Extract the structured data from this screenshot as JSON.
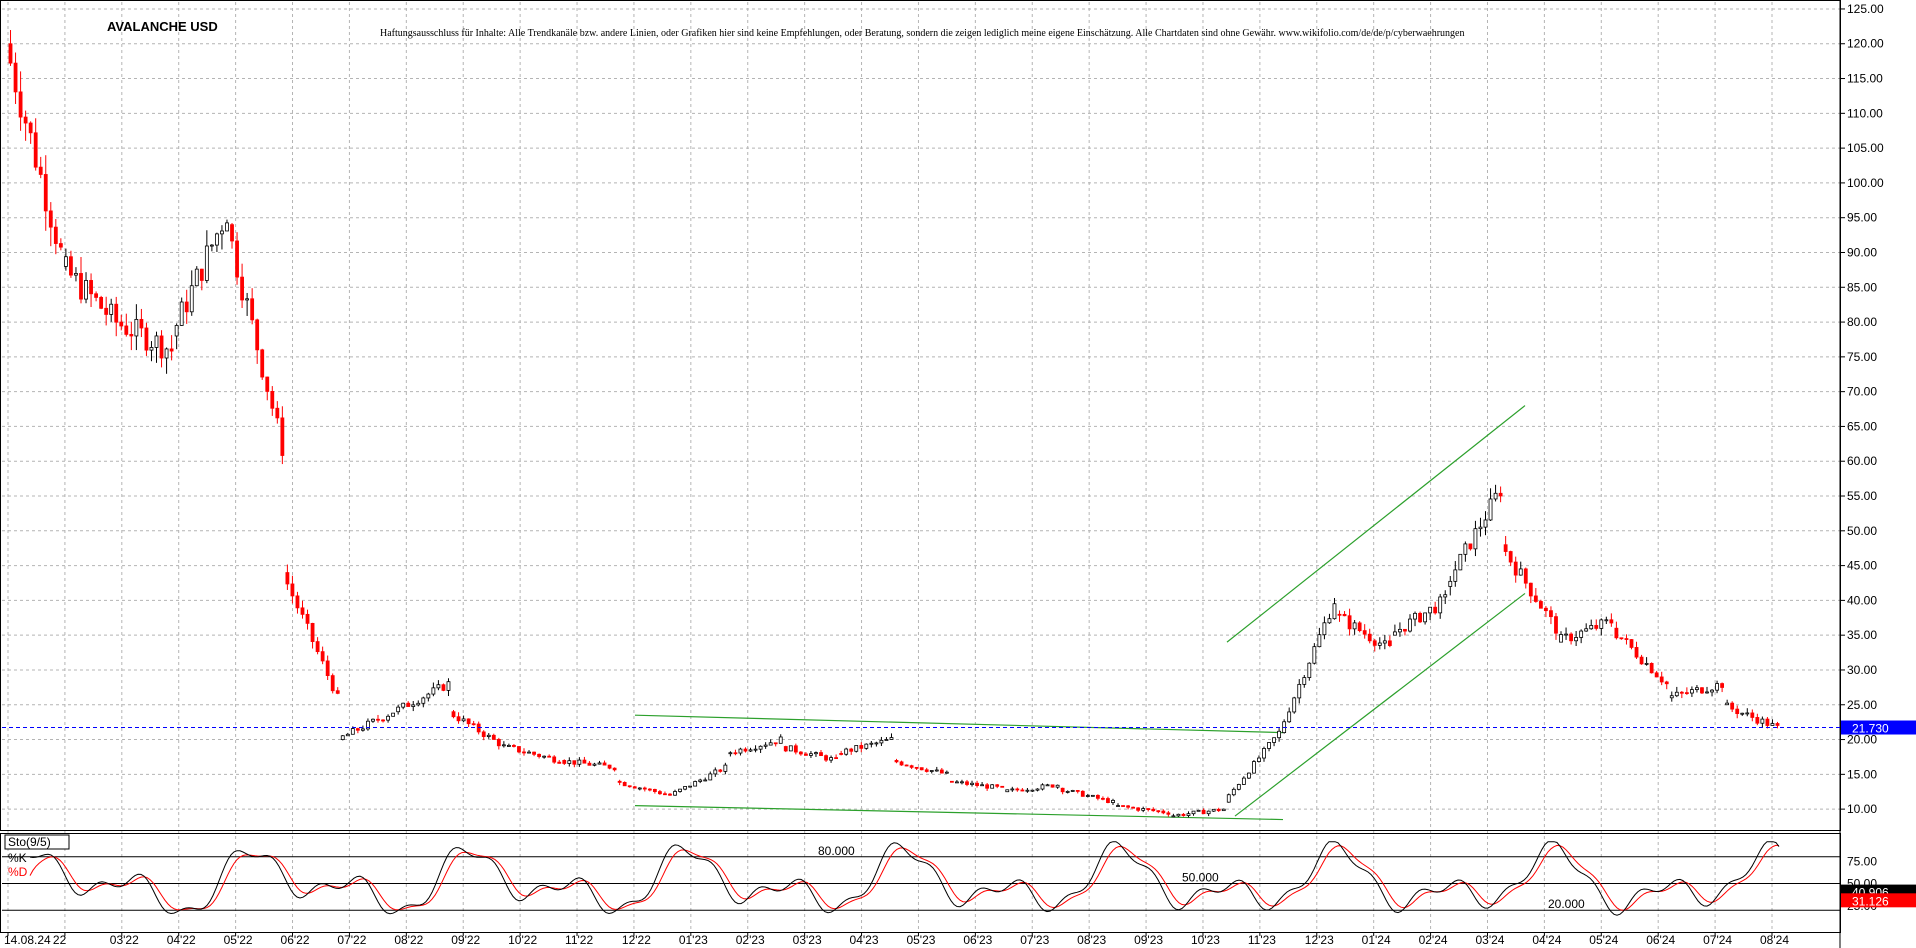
{
  "title": "AVALANCHE USD",
  "disclaimer": "Haftungsausschluss für Inhalte: Alle Trendkanäle bzw. andere Linien, oder Grafiken hier sind keine Empfehlungen, oder Beratung, sondern die zeigen lediglich meine eigene Einschätzung. Alle Chartdaten sind ohne Gewähr. www.wikifolio.com/de/de/p/cyberwaehrungen",
  "colors": {
    "up": "#000000",
    "down": "#ff0000",
    "trend": "#2ca02c",
    "current_line": "#0000ff",
    "grid": "#b4b4b4"
  },
  "chart_data": [
    {
      "type": "candlestick",
      "title": "AVALANCHE USD",
      "ylim": [
        7,
        126
      ],
      "yticks": [
        "125.00",
        "120.00",
        "115.00",
        "110.00",
        "105.00",
        "100.00",
        "95.00",
        "90.00",
        "85.00",
        "80.00",
        "75.00",
        "70.00",
        "65.00",
        "60.00",
        "55.00",
        "50.00",
        "45.00",
        "40.00",
        "35.00",
        "30.00",
        "25.00",
        "20.00",
        "15.00",
        "10.00"
      ],
      "current_price": "21.730",
      "grid": true,
      "xticks": [
        "14.08.24",
        "22",
        "03'22",
        "04'22",
        "05'22",
        "06'22",
        "07'22",
        "08'22",
        "09'22",
        "10'22",
        "11'22",
        "12'22",
        "01'23",
        "02'23",
        "03'23",
        "04'23",
        "05'23",
        "06'23",
        "07'23",
        "08'23",
        "09'23",
        "10'23",
        "11'23",
        "12'23",
        "01'24",
        "02'24",
        "03'24",
        "04'24",
        "05'24",
        "06'24",
        "07'24",
        "08'24"
      ],
      "series": [
        {
          "month": "01'22",
          "start": 120,
          "end": 90
        },
        {
          "month": "02'22",
          "start": 88,
          "end": 80
        },
        {
          "month": "03'22",
          "start": 80,
          "end": 76
        },
        {
          "month": "04'22",
          "start": 78,
          "end": 96
        },
        {
          "month": "05'22",
          "start": 94,
          "end": 62
        },
        {
          "month": "06'22",
          "start": 44,
          "end": 26
        },
        {
          "month": "07'22",
          "start": 20,
          "end": 24
        },
        {
          "month": "08'22",
          "start": 24,
          "end": 28
        },
        {
          "month": "09'22",
          "start": 24,
          "end": 19
        },
        {
          "month": "10'22",
          "start": 19,
          "end": 17
        },
        {
          "month": "11'22",
          "start": 17,
          "end": 16
        },
        {
          "month": "12'22",
          "start": 14,
          "end": 12
        },
        {
          "month": "01'23",
          "start": 12,
          "end": 16
        },
        {
          "month": "02'23",
          "start": 18,
          "end": 20
        },
        {
          "month": "03'23",
          "start": 19,
          "end": 17
        },
        {
          "month": "04'23",
          "start": 18,
          "end": 20
        },
        {
          "month": "05'23",
          "start": 17,
          "end": 15
        },
        {
          "month": "06'23",
          "start": 14,
          "end": 13
        },
        {
          "month": "07'23",
          "start": 12.5,
          "end": 13.5
        },
        {
          "month": "08'23",
          "start": 13,
          "end": 11
        },
        {
          "month": "09'23",
          "start": 10.5,
          "end": 9.5
        },
        {
          "month": "10'23",
          "start": 9,
          "end": 10
        },
        {
          "month": "11'23",
          "start": 11,
          "end": 21
        },
        {
          "month": "12'23",
          "start": 21,
          "end": 40
        },
        {
          "month": "01'24",
          "start": 38,
          "end": 33
        },
        {
          "month": "02'24",
          "start": 35,
          "end": 40
        },
        {
          "month": "03'24",
          "start": 42,
          "end": 56
        },
        {
          "month": "04'24",
          "start": 48,
          "end": 36
        },
        {
          "month": "05'24",
          "start": 34,
          "end": 37
        },
        {
          "month": "06'24",
          "start": 36,
          "end": 28
        },
        {
          "month": "07'24",
          "start": 26,
          "end": 28
        },
        {
          "month": "08'24",
          "start": 25,
          "end": 21.7
        }
      ],
      "trendlines": [
        {
          "name": "triangle-top",
          "from": [
            0.0,
            23.5
          ],
          "to": [
            1.0,
            21.0
          ]
        },
        {
          "name": "triangle-bottom",
          "from": [
            0.0,
            10.5
          ],
          "to": [
            1.0,
            8.5
          ]
        },
        {
          "name": "channel-top",
          "from": [
            0.0,
            34.0
          ],
          "to": [
            1.0,
            68.0
          ]
        },
        {
          "name": "channel-bottom",
          "from": [
            0.0,
            9.0
          ],
          "to": [
            1.0,
            41.0
          ]
        }
      ]
    },
    {
      "type": "line",
      "name": "Sto(9/5)",
      "legend": [
        "%K",
        "%D"
      ],
      "ylim": [
        0,
        100
      ],
      "levels": [
        "80.000",
        "50.000",
        "20.000"
      ],
      "last_values": {
        "k": "40.906",
        "d": "31.126"
      },
      "yticks": [
        "75.00",
        "50.00",
        "25.00"
      ],
      "series": [
        {
          "name": "%K",
          "color": "#000000"
        },
        {
          "name": "%D",
          "color": "#ff0000"
        }
      ]
    }
  ]
}
